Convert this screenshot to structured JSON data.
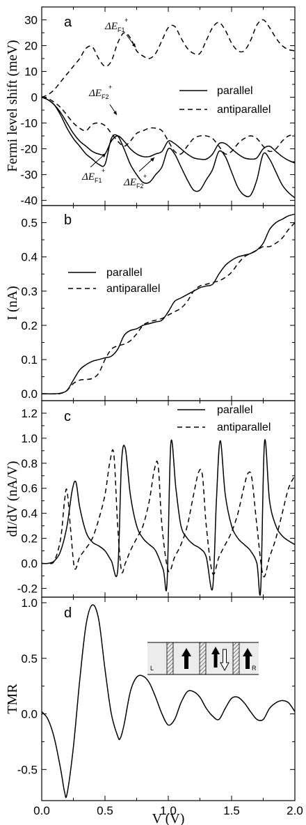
{
  "chart_data": [
    {
      "type": "line",
      "panel": "a",
      "ylabel": "Fermi level shift (meV)",
      "xlim": [
        0,
        2
      ],
      "ylim": [
        -42,
        35
      ],
      "yticks": [
        -40,
        -30,
        -20,
        -10,
        0,
        10,
        20,
        30
      ],
      "legend": {
        "placement": "right",
        "entries": [
          "parallel",
          "antiparallel"
        ]
      },
      "series": [
        {
          "name": "parallel",
          "style": "solid",
          "x": [
            0,
            0.05,
            0.1,
            0.15,
            0.2,
            0.25,
            0.3,
            0.35,
            0.4,
            0.45,
            0.5,
            0.55,
            0.6,
            0.65,
            0.7,
            0.75,
            0.8,
            0.85,
            0.9,
            0.95,
            1.0,
            1.05,
            1.1,
            1.15,
            1.2,
            1.25,
            1.3,
            1.35,
            1.4,
            1.45,
            1.5,
            1.55,
            1.6,
            1.65,
            1.7,
            1.75,
            1.8,
            1.85,
            1.9,
            1.95,
            2.0
          ],
          "y": [
            0,
            -1,
            -3,
            -6,
            -10,
            -14,
            -17,
            -19,
            -21,
            -22,
            -22,
            -17,
            -15,
            -17,
            -20,
            -22,
            -23,
            -23,
            -22,
            -21,
            -17,
            -18,
            -20,
            -22,
            -23.5,
            -24,
            -24,
            -22,
            -18,
            -18,
            -20,
            -22,
            -23.5,
            -24,
            -23.5,
            -20,
            -19,
            -21,
            -23,
            -24.5,
            -25.5
          ]
        },
        {
          "name": "parallel",
          "style": "solid",
          "x": [
            0,
            0.05,
            0.1,
            0.15,
            0.2,
            0.25,
            0.3,
            0.35,
            0.4,
            0.45,
            0.5,
            0.55,
            0.6,
            0.65,
            0.7,
            0.75,
            0.8,
            0.85,
            0.9,
            0.95,
            1.0,
            1.05,
            1.1,
            1.15,
            1.2,
            1.25,
            1.3,
            1.35,
            1.4,
            1.45,
            1.5,
            1.55,
            1.6,
            1.65,
            1.7,
            1.75,
            1.8,
            1.85,
            1.9,
            1.95,
            2.0
          ],
          "y": [
            0,
            -1,
            -3,
            -7,
            -12,
            -16,
            -19,
            -22,
            -24,
            -26,
            -26,
            -16,
            -15,
            -20,
            -26,
            -30,
            -33,
            -33,
            -30,
            -27,
            -20,
            -22,
            -27,
            -32,
            -36,
            -36,
            -32,
            -28,
            -21,
            -23,
            -29,
            -35,
            -38,
            -38,
            -32,
            -22,
            -24,
            -29,
            -34,
            -37,
            -39
          ]
        },
        {
          "name": "antiparallel",
          "style": "dashed",
          "x": [
            0,
            0.05,
            0.1,
            0.15,
            0.2,
            0.25,
            0.3,
            0.35,
            0.4,
            0.45,
            0.5,
            0.55,
            0.6,
            0.65,
            0.7,
            0.75,
            0.8,
            0.85,
            0.9,
            0.95,
            1.0,
            1.05,
            1.1,
            1.15,
            1.2,
            1.25,
            1.3,
            1.35,
            1.4,
            1.45,
            1.5,
            1.55,
            1.6,
            1.65,
            1.7,
            1.75,
            1.8,
            1.85,
            1.9,
            1.95,
            2.0
          ],
          "y": [
            0,
            1,
            3,
            6,
            9,
            12,
            15,
            19,
            19.5,
            15,
            12,
            14,
            21,
            25,
            23,
            18,
            16,
            15,
            17,
            22,
            27,
            27.5,
            23,
            19,
            17,
            17,
            22,
            27,
            29,
            26,
            21,
            18,
            18,
            22,
            28,
            30,
            27,
            23,
            20,
            18.5,
            18
          ]
        },
        {
          "name": "antiparallel",
          "style": "dashed",
          "x": [
            0,
            0.05,
            0.1,
            0.15,
            0.2,
            0.25,
            0.3,
            0.35,
            0.4,
            0.45,
            0.5,
            0.55,
            0.6,
            0.65,
            0.7,
            0.75,
            0.8,
            0.85,
            0.9,
            0.95,
            1.0,
            1.05,
            1.1,
            1.15,
            1.2,
            1.25,
            1.3,
            1.35,
            1.4,
            1.45,
            1.5,
            1.55,
            1.6,
            1.65,
            1.7,
            1.75,
            1.8,
            1.85,
            1.9,
            1.95,
            2.0
          ],
          "y": [
            0,
            -0.5,
            -2,
            -4,
            -7,
            -10,
            -12,
            -13,
            -10.5,
            -10,
            -11,
            -14,
            -17,
            -19,
            -17,
            -14,
            -13,
            -12,
            -12,
            -13,
            -17,
            -21,
            -22,
            -19,
            -16,
            -15,
            -15,
            -16,
            -19,
            -22,
            -21,
            -18,
            -16,
            -15,
            -16,
            -19,
            -21,
            -20,
            -17,
            -15,
            -14.5
          ]
        }
      ],
      "annotations": [
        {
          "text": "ΔE",
          "sup": "+",
          "sub": "F1"
        },
        {
          "text": "ΔE",
          "sup": "+",
          "sub": "F2"
        },
        {
          "text": "ΔE",
          "sup": "+",
          "sub": "F1"
        },
        {
          "text": "ΔE",
          "sup": "+",
          "sub": "F2"
        }
      ]
    },
    {
      "type": "line",
      "panel": "b",
      "ylabel": "I (nA)",
      "xlim": [
        0,
        2
      ],
      "ylim": [
        -0.02,
        0.55
      ],
      "yticks": [
        0.0,
        0.1,
        0.2,
        0.3,
        0.4,
        0.5
      ],
      "legend": {
        "placement": "left",
        "entries": [
          "parallel",
          "antiparallel"
        ]
      },
      "series": [
        {
          "name": "parallel",
          "style": "solid",
          "x": [
            0,
            0.05,
            0.1,
            0.15,
            0.2,
            0.25,
            0.3,
            0.35,
            0.4,
            0.45,
            0.5,
            0.55,
            0.6,
            0.65,
            0.7,
            0.75,
            0.8,
            0.85,
            0.9,
            0.95,
            1.0,
            1.05,
            1.1,
            1.15,
            1.2,
            1.25,
            1.3,
            1.35,
            1.4,
            1.45,
            1.5,
            1.55,
            1.6,
            1.65,
            1.7,
            1.75,
            1.8,
            1.85,
            1.9,
            1.95,
            2.0
          ],
          "y": [
            0,
            0,
            0,
            0.002,
            0.01,
            0.04,
            0.07,
            0.085,
            0.095,
            0.1,
            0.105,
            0.11,
            0.13,
            0.17,
            0.185,
            0.19,
            0.2,
            0.205,
            0.21,
            0.215,
            0.24,
            0.27,
            0.28,
            0.29,
            0.3,
            0.31,
            0.315,
            0.32,
            0.35,
            0.375,
            0.39,
            0.4,
            0.405,
            0.41,
            0.42,
            0.44,
            0.48,
            0.5,
            0.51,
            0.52,
            0.525
          ]
        },
        {
          "name": "antiparallel",
          "style": "dashed",
          "x": [
            0,
            0.05,
            0.1,
            0.15,
            0.2,
            0.25,
            0.3,
            0.35,
            0.4,
            0.45,
            0.5,
            0.55,
            0.6,
            0.65,
            0.7,
            0.75,
            0.8,
            0.85,
            0.9,
            0.95,
            1.0,
            1.05,
            1.1,
            1.15,
            1.2,
            1.25,
            1.3,
            1.35,
            1.4,
            1.45,
            1.5,
            1.55,
            1.6,
            1.65,
            1.7,
            1.75,
            1.8,
            1.85,
            1.9,
            1.95,
            2.0
          ],
          "y": [
            0,
            0,
            0,
            0.001,
            0.01,
            0.03,
            0.04,
            0.042,
            0.045,
            0.06,
            0.1,
            0.13,
            0.14,
            0.145,
            0.155,
            0.175,
            0.2,
            0.21,
            0.215,
            0.22,
            0.23,
            0.24,
            0.25,
            0.27,
            0.3,
            0.315,
            0.32,
            0.325,
            0.33,
            0.34,
            0.355,
            0.38,
            0.4,
            0.41,
            0.42,
            0.43,
            0.43,
            0.44,
            0.455,
            0.48,
            0.5
          ]
        }
      ]
    },
    {
      "type": "line",
      "panel": "c",
      "ylabel": "dI/dV (nA/V)",
      "xlim": [
        0,
        2
      ],
      "ylim": [
        -0.27,
        1.3
      ],
      "yticks": [
        -0.2,
        0.0,
        0.2,
        0.4,
        0.6,
        0.8,
        1.0,
        1.2
      ],
      "legend": {
        "placement": "top-right",
        "entries": [
          "parallel",
          "antiparallel"
        ]
      },
      "series": [
        {
          "name": "parallel",
          "style": "solid",
          "x": [
            0,
            0.05,
            0.1,
            0.15,
            0.2,
            0.24,
            0.27,
            0.3,
            0.35,
            0.4,
            0.45,
            0.5,
            0.55,
            0.6,
            0.63,
            0.66,
            0.7,
            0.75,
            0.8,
            0.85,
            0.9,
            0.96,
            0.99,
            1.02,
            1.06,
            1.1,
            1.15,
            1.2,
            1.25,
            1.3,
            1.35,
            1.38,
            1.41,
            1.45,
            1.5,
            1.55,
            1.6,
            1.65,
            1.7,
            1.73,
            1.76,
            1.8,
            1.85,
            1.9,
            1.95,
            2.0
          ],
          "y": [
            0,
            0,
            0.02,
            0.1,
            0.3,
            0.58,
            0.65,
            0.45,
            0.25,
            0.17,
            0.14,
            0.1,
            0.02,
            -0.06,
            0.8,
            0.92,
            0.55,
            0.3,
            0.2,
            0.15,
            0.1,
            -0.05,
            -0.16,
            0.96,
            0.6,
            0.3,
            0.2,
            0.15,
            0.12,
            0.05,
            -0.2,
            0.5,
            0.98,
            0.55,
            0.3,
            0.2,
            0.15,
            0.1,
            0.0,
            -0.21,
            0.97,
            0.5,
            0.3,
            0.22,
            0.18,
            0.15
          ]
        },
        {
          "name": "antiparallel",
          "style": "dashed",
          "x": [
            0,
            0.05,
            0.1,
            0.15,
            0.18,
            0.2,
            0.23,
            0.26,
            0.3,
            0.35,
            0.4,
            0.45,
            0.5,
            0.54,
            0.57,
            0.6,
            0.63,
            0.66,
            0.7,
            0.75,
            0.8,
            0.85,
            0.89,
            0.92,
            0.95,
            1.0,
            1.05,
            1.1,
            1.15,
            1.2,
            1.24,
            1.27,
            1.3,
            1.35,
            1.4,
            1.45,
            1.5,
            1.55,
            1.6,
            1.63,
            1.66,
            1.7,
            1.75,
            1.8,
            1.85,
            1.9,
            1.95,
            2.0
          ],
          "y": [
            0,
            0,
            0.02,
            0.2,
            0.5,
            0.58,
            0.25,
            -0.04,
            0.05,
            0.12,
            0.2,
            0.35,
            0.55,
            0.82,
            0.87,
            0.3,
            -0.06,
            0.0,
            0.1,
            0.2,
            0.3,
            0.5,
            0.75,
            0.78,
            0.3,
            -0.06,
            0.05,
            0.15,
            0.3,
            0.55,
            0.73,
            0.7,
            0.3,
            -0.08,
            0.05,
            0.15,
            0.25,
            0.4,
            0.62,
            0.72,
            0.68,
            0.3,
            -0.1,
            0.05,
            0.2,
            0.4,
            0.6,
            0.7
          ]
        }
      ]
    },
    {
      "type": "line",
      "panel": "d",
      "ylabel": "TMR",
      "xlabel": "V (V)",
      "xlim": [
        0,
        2
      ],
      "ylim": [
        -0.78,
        1.05
      ],
      "yticks": [
        -0.5,
        0.0,
        0.5,
        1.0
      ],
      "xticks": [
        0.0,
        0.5,
        1.0,
        1.5,
        2.0
      ],
      "series": [
        {
          "name": "",
          "style": "solid",
          "x": [
            0,
            0.05,
            0.1,
            0.15,
            0.18,
            0.2,
            0.25,
            0.3,
            0.35,
            0.4,
            0.45,
            0.5,
            0.55,
            0.6,
            0.62,
            0.65,
            0.7,
            0.75,
            0.8,
            0.85,
            0.9,
            0.95,
            1.0,
            1.05,
            1.1,
            1.15,
            1.2,
            1.25,
            1.3,
            1.35,
            1.4,
            1.45,
            1.5,
            1.55,
            1.6,
            1.65,
            1.7,
            1.75,
            1.8,
            1.85,
            1.9,
            1.95,
            2.0
          ],
          "y": [
            0.02,
            -0.05,
            -0.22,
            -0.5,
            -0.7,
            -0.72,
            -0.3,
            0.3,
            0.8,
            0.98,
            0.85,
            0.4,
            0.0,
            -0.2,
            -0.22,
            -0.1,
            0.2,
            0.33,
            0.34,
            0.28,
            0.15,
            0.0,
            -0.1,
            -0.05,
            0.1,
            0.2,
            0.2,
            0.15,
            0.05,
            -0.02,
            -0.05,
            0.05,
            0.14,
            0.15,
            0.1,
            0.02,
            -0.05,
            -0.05,
            0.05,
            0.1,
            0.12,
            0.1,
            0.02
          ]
        }
      ],
      "inset": {
        "labels": [
          "L",
          "R"
        ],
        "arrows": [
          "up",
          "up-down",
          "up"
        ]
      }
    }
  ],
  "style": {
    "line_color": "#000000",
    "hatch_color": "#555555",
    "inset_bg": "#e6e6e6"
  }
}
